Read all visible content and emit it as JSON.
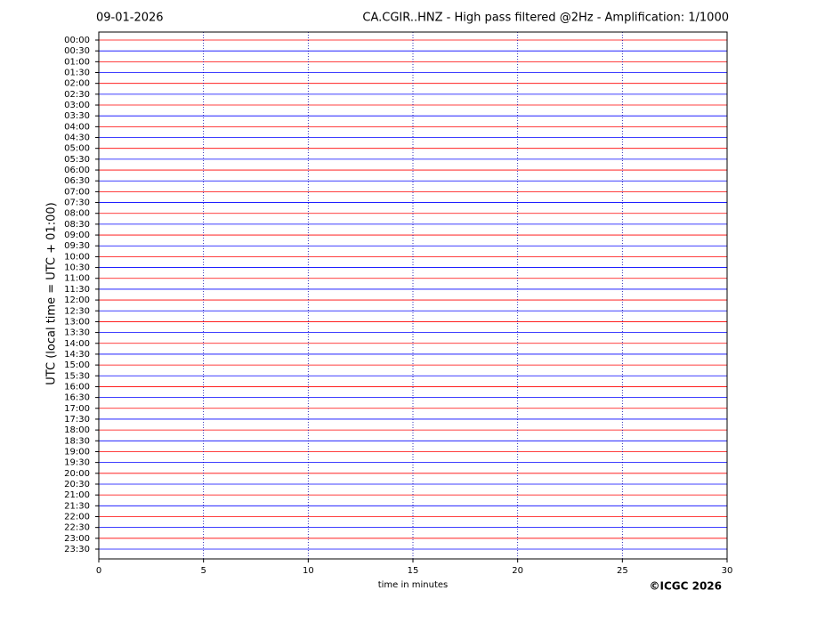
{
  "chart_data": {
    "type": "helicorder",
    "date": "09-01-2026",
    "title": "CA.CGIR..HNZ - High pass filtered @2Hz - Amplification: 1/1000",
    "ylabel": "UTC (local time = UTC + 01:00)",
    "xlabel": "time in minutes",
    "copyright": "©ICGC 2026",
    "categories": [
      "00:00",
      "00:30",
      "01:00",
      "01:30",
      "02:00",
      "02:30",
      "03:00",
      "03:30",
      "04:00",
      "04:30",
      "05:00",
      "05:30",
      "06:00",
      "06:30",
      "07:00",
      "07:30",
      "08:00",
      "08:30",
      "09:00",
      "09:30",
      "10:00",
      "10:30",
      "11:00",
      "11:30",
      "12:00",
      "12:30",
      "13:00",
      "13:30",
      "14:00",
      "14:30",
      "15:00",
      "15:30",
      "16:00",
      "16:30",
      "17:00",
      "17:30",
      "18:00",
      "18:30",
      "19:00",
      "19:30",
      "20:00",
      "20:30",
      "21:00",
      "21:30",
      "22:00",
      "22:30",
      "23:00",
      "23:30"
    ],
    "trace_colors": [
      "#ff0000",
      "#0000ff"
    ],
    "xlim": [
      0,
      30
    ],
    "xticks": [
      0,
      5,
      10,
      15,
      20,
      25,
      30
    ],
    "grid": true
  }
}
